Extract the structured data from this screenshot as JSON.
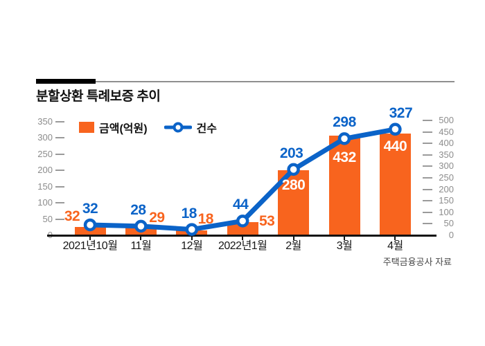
{
  "header": {
    "title": "분할상환 특례보증 추이",
    "source": "주택금융공사 자료"
  },
  "legend": [
    {
      "label": "금액(억원)",
      "swatch": "bar-square"
    },
    {
      "label": "건수",
      "swatch": "line-dot"
    }
  ],
  "colors": {
    "bar": "#f8641e",
    "line": "#0b63c8",
    "axis_text": "#8c8c8c",
    "tick": "#9a9a9a",
    "baseline": "#111111",
    "inside_label": "#ffffff"
  },
  "chart_data": {
    "type": "bar+line",
    "title": "분할상환 특례보증 추이",
    "categories": [
      "2021년10월",
      "11월",
      "12월",
      "2022년1월",
      "2월",
      "3월",
      "4월"
    ],
    "series": [
      {
        "name": "금액(억원)",
        "type": "bar",
        "axis": "right",
        "values": [
          32,
          29,
          18,
          53,
          280,
          432,
          440
        ]
      },
      {
        "name": "건수",
        "type": "line",
        "axis": "left",
        "values": [
          32,
          28,
          18,
          44,
          203,
          298,
          327
        ]
      }
    ],
    "left_axis": {
      "min": 0,
      "max": 350,
      "step": 50,
      "ticks": [
        0,
        50,
        100,
        150,
        200,
        250,
        300,
        350
      ]
    },
    "right_axis": {
      "min": 0,
      "max": 500,
      "step": 50,
      "ticks": [
        0,
        50,
        100,
        150,
        200,
        250,
        300,
        350,
        400,
        450,
        500
      ]
    },
    "grid": false,
    "legend_position": "top-left",
    "source": "주택금융공사 자료"
  }
}
